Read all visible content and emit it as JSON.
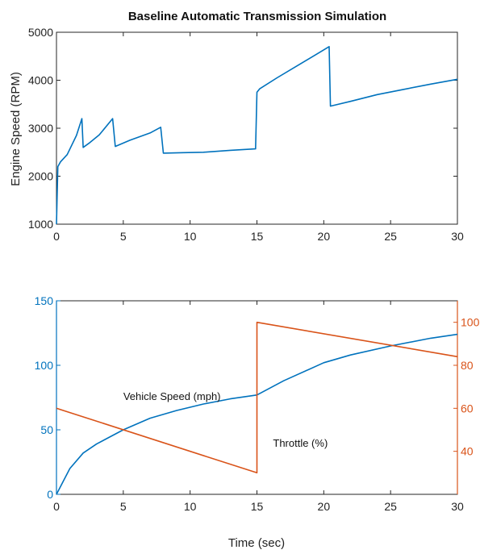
{
  "chart_data": [
    {
      "type": "line",
      "title": "Baseline Automatic Transmission Simulation",
      "xlabel": "",
      "ylabel": "Engine Speed (RPM)",
      "xlim": [
        0,
        30
      ],
      "ylim": [
        1000,
        5000
      ],
      "x_ticks": [
        "0",
        "5",
        "10",
        "15",
        "20",
        "25",
        "30"
      ],
      "y_ticks": [
        "1000",
        "2000",
        "3000",
        "4000",
        "5000"
      ],
      "grid": false,
      "colors": {
        "line": "#0072BD",
        "axis": "#262626"
      },
      "series": [
        {
          "x": [
            0,
            0.1,
            0.3,
            0.8,
            1.5,
            1.9,
            2.0,
            2.5,
            3.2,
            4.2,
            4.4,
            5.5,
            7.0,
            7.8,
            8.0,
            9.5,
            11,
            13,
            14.9,
            15.0,
            15.2,
            16.5,
            18.0,
            19.5,
            20.4,
            20.5,
            22,
            24,
            26,
            28,
            30
          ],
          "y": [
            1000,
            2200,
            2300,
            2450,
            2850,
            3200,
            2600,
            2700,
            2860,
            3200,
            2620,
            2750,
            2900,
            3020,
            2480,
            2490,
            2500,
            2540,
            2570,
            3750,
            3820,
            4050,
            4300,
            4550,
            4700,
            3460,
            3560,
            3700,
            3810,
            3920,
            4020
          ]
        }
      ]
    },
    {
      "type": "line",
      "title": "",
      "xlabel": "Time (sec)",
      "ylabel": "",
      "y2label": "",
      "xlim": [
        0,
        30
      ],
      "ylim": [
        0,
        150
      ],
      "y2lim": [
        20,
        110
      ],
      "x_ticks": [
        "0",
        "5",
        "10",
        "15",
        "20",
        "25",
        "30"
      ],
      "y_ticks": [
        "0",
        "50",
        "100",
        "150"
      ],
      "y2_ticks": [
        "40",
        "60",
        "80",
        "100"
      ],
      "grid": false,
      "colors": {
        "left_axis": "#0072BD",
        "right_axis": "#D95319",
        "axis": "#262626"
      },
      "series": [
        {
          "axis": "left",
          "color": "#0072BD",
          "x": [
            0,
            0.5,
            1,
            2,
            3,
            5,
            7,
            9,
            11,
            13,
            15,
            17,
            20,
            22,
            25,
            28,
            30
          ],
          "y": [
            0,
            10,
            20,
            32,
            39,
            50,
            59,
            65,
            70,
            74,
            77,
            88,
            102,
            108,
            115,
            121,
            124
          ]
        },
        {
          "axis": "right",
          "color": "#D95319",
          "x": [
            0,
            15,
            15,
            30
          ],
          "y": [
            60,
            30,
            100,
            84
          ]
        }
      ],
      "annotations": [
        {
          "text": "Vehicle Speed (mph)",
          "x": 5,
          "y": 73,
          "axis": "left"
        },
        {
          "text": "Throttle (%)",
          "x": 16.2,
          "y": 37,
          "axis": "left"
        }
      ]
    }
  ]
}
